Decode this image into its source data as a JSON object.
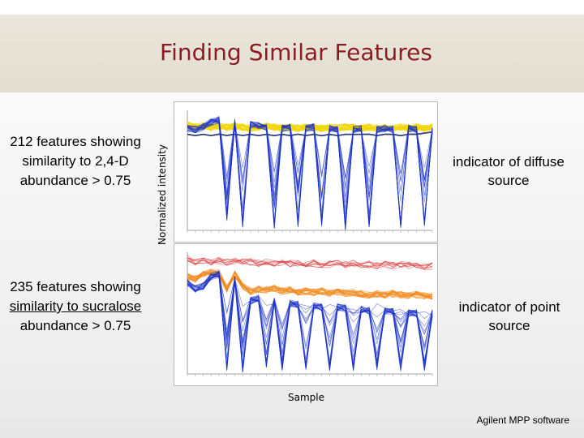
{
  "slide": {
    "title": "Finding Similar Features",
    "left_top_text": "212 features showing similarity to 2,4-D abundance > 0.75",
    "left_bottom_text_1": "235 features showing ",
    "left_bottom_text_2": "similarity to sucralose",
    "left_bottom_text_3": " abundance  > 0.75",
    "right_top_text": "indicator of diffuse source",
    "right_bottom_text": "indicator of point source",
    "y_axis_label": "Normalized intensity",
    "x_axis_label": "Sample",
    "credit": "Agilent MPP software"
  },
  "colors": {
    "title": "#8b1c24",
    "profile_yellow": "#f2d600",
    "profile_orange": "#f08a1e",
    "profile_red": "#d62b2b",
    "profile_blue": "#1f35c8",
    "profile_navy": "#1c2a6b",
    "profile_gray": "#9a9a9a"
  },
  "chart_data": [
    {
      "type": "line",
      "description_key": "top_panel",
      "series": [
        {
          "color": "yellow",
          "values": [
            0.88,
            0.86,
            0.87,
            0.86,
            0.87,
            0.86,
            0.87,
            0.86,
            0.85,
            0.86,
            0.87,
            0.86,
            0.85,
            0.86,
            0.85,
            0.86,
            0.86,
            0.85,
            0.86,
            0.85,
            0.86,
            0.86,
            0.85,
            0.86,
            0.85,
            0.86,
            0.85,
            0.86,
            0.85,
            0.86,
            0.85,
            0.86
          ]
        },
        {
          "color": "navy",
          "values": [
            0.8,
            0.79,
            0.8,
            0.79,
            0.8,
            0.79,
            0.8,
            0.79,
            0.8,
            0.79,
            0.8,
            0.79,
            0.8,
            0.79,
            0.8,
            0.79,
            0.8,
            0.79,
            0.8,
            0.79,
            0.8,
            0.8,
            0.8,
            0.8,
            0.79,
            0.8,
            0.8,
            0.79,
            0.8,
            0.8,
            0.81,
            0.82
          ]
        },
        {
          "color": "blue",
          "values": [
            0.85,
            0.84,
            0.86,
            0.9,
            0.92,
            0.1,
            0.9,
            0.05,
            0.88,
            0.87,
            0.86,
            0.04,
            0.85,
            0.86,
            0.05,
            0.85,
            0.86,
            0.06,
            0.85,
            0.84,
            0.03,
            0.84,
            0.85,
            0.05,
            0.84,
            0.85,
            0.84,
            0.05,
            0.85,
            0.84,
            0.06,
            0.84
          ]
        }
      ]
    },
    {
      "type": "line",
      "description_key": "bottom_panel",
      "series": [
        {
          "color": "red",
          "values": [
            0.95,
            0.92,
            0.93,
            0.92,
            0.93,
            0.92,
            0.93,
            0.92,
            0.92,
            0.91,
            0.92,
            0.91,
            0.92,
            0.91,
            0.91,
            0.9,
            0.91,
            0.9,
            0.9,
            0.91,
            0.9,
            0.91,
            0.9,
            0.9,
            0.89,
            0.9,
            0.89,
            0.9,
            0.89,
            0.89,
            0.88,
            0.89
          ]
        },
        {
          "color": "orange",
          "values": [
            0.8,
            0.78,
            0.82,
            0.84,
            0.83,
            0.7,
            0.82,
            0.72,
            0.68,
            0.7,
            0.69,
            0.7,
            0.68,
            0.69,
            0.67,
            0.68,
            0.67,
            0.68,
            0.66,
            0.67,
            0.66,
            0.67,
            0.66,
            0.65,
            0.66,
            0.65,
            0.66,
            0.65,
            0.64,
            0.65,
            0.64,
            0.64
          ]
        },
        {
          "color": "blue",
          "values": [
            0.75,
            0.7,
            0.72,
            0.8,
            0.82,
            0.05,
            0.78,
            0.04,
            0.6,
            0.62,
            0.08,
            0.6,
            0.05,
            0.58,
            0.57,
            0.06,
            0.56,
            0.55,
            0.05,
            0.55,
            0.54,
            0.05,
            0.53,
            0.52,
            0.06,
            0.52,
            0.51,
            0.05,
            0.5,
            0.5,
            0.05,
            0.5
          ]
        }
      ]
    }
  ]
}
